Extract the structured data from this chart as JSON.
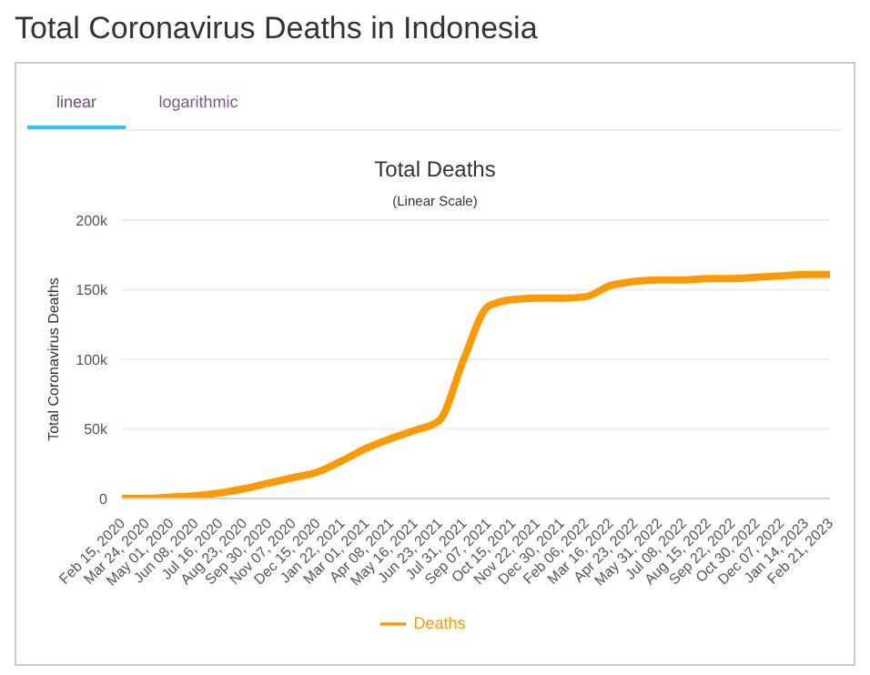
{
  "chart_data": {
    "type": "line",
    "title": "Total Deaths",
    "subtitle": "(Linear Scale)",
    "annotations": [
      "Total Coronavirus Deaths in Indonesia",
      "linear",
      "logarithmic"
    ],
    "ylabel": "Total Coronavirus Deaths",
    "categories": [
      "Feb 15, 2020",
      "Mar 24, 2020",
      "May 01, 2020",
      "Jun 08, 2020",
      "Jul 16, 2020",
      "Aug 23, 2020",
      "Sep 30, 2020",
      "Nov 07, 2020",
      "Dec 15, 2020",
      "Jan 22, 2021",
      "Mar 01, 2021",
      "Apr 08, 2021",
      "May 16, 2021",
      "Jun 23, 2021",
      "Jul 31, 2021",
      "Sep 07, 2021",
      "Oct 15, 2021",
      "Nov 22, 2021",
      "Dec 30, 2021",
      "Feb 06, 2022",
      "Mar 16, 2022",
      "Apr 23, 2022",
      "May 31, 2022",
      "Jul 08, 2022",
      "Aug 15, 2022",
      "Sep 22, 2022",
      "Oct 30, 2022",
      "Dec 07, 2022",
      "Jan 14, 2023",
      "Feb 21, 2023"
    ],
    "series": [
      {
        "name": "Deaths",
        "color": "#ff9900",
        "values": [
          0,
          0,
          1000,
          2000,
          4000,
          7000,
          11000,
          15000,
          19000,
          27000,
          36000,
          43000,
          49000,
          56000,
          100000,
          138000,
          143000,
          144000,
          144000,
          145000,
          153000,
          156000,
          157000,
          157000,
          158000,
          158000,
          159000,
          160000,
          161000,
          161000
        ]
      }
    ],
    "ylim": [
      0,
      200000
    ],
    "yticks": [
      {
        "value": 0,
        "label": "0"
      },
      {
        "value": 50000,
        "label": "50k"
      },
      {
        "value": 100000,
        "label": "100k"
      },
      {
        "value": 150000,
        "label": "150k"
      },
      {
        "value": 200000,
        "label": "200k"
      }
    ],
    "grid": "y",
    "legend": "bottom",
    "marker": "none",
    "line_style": "solid"
  }
}
